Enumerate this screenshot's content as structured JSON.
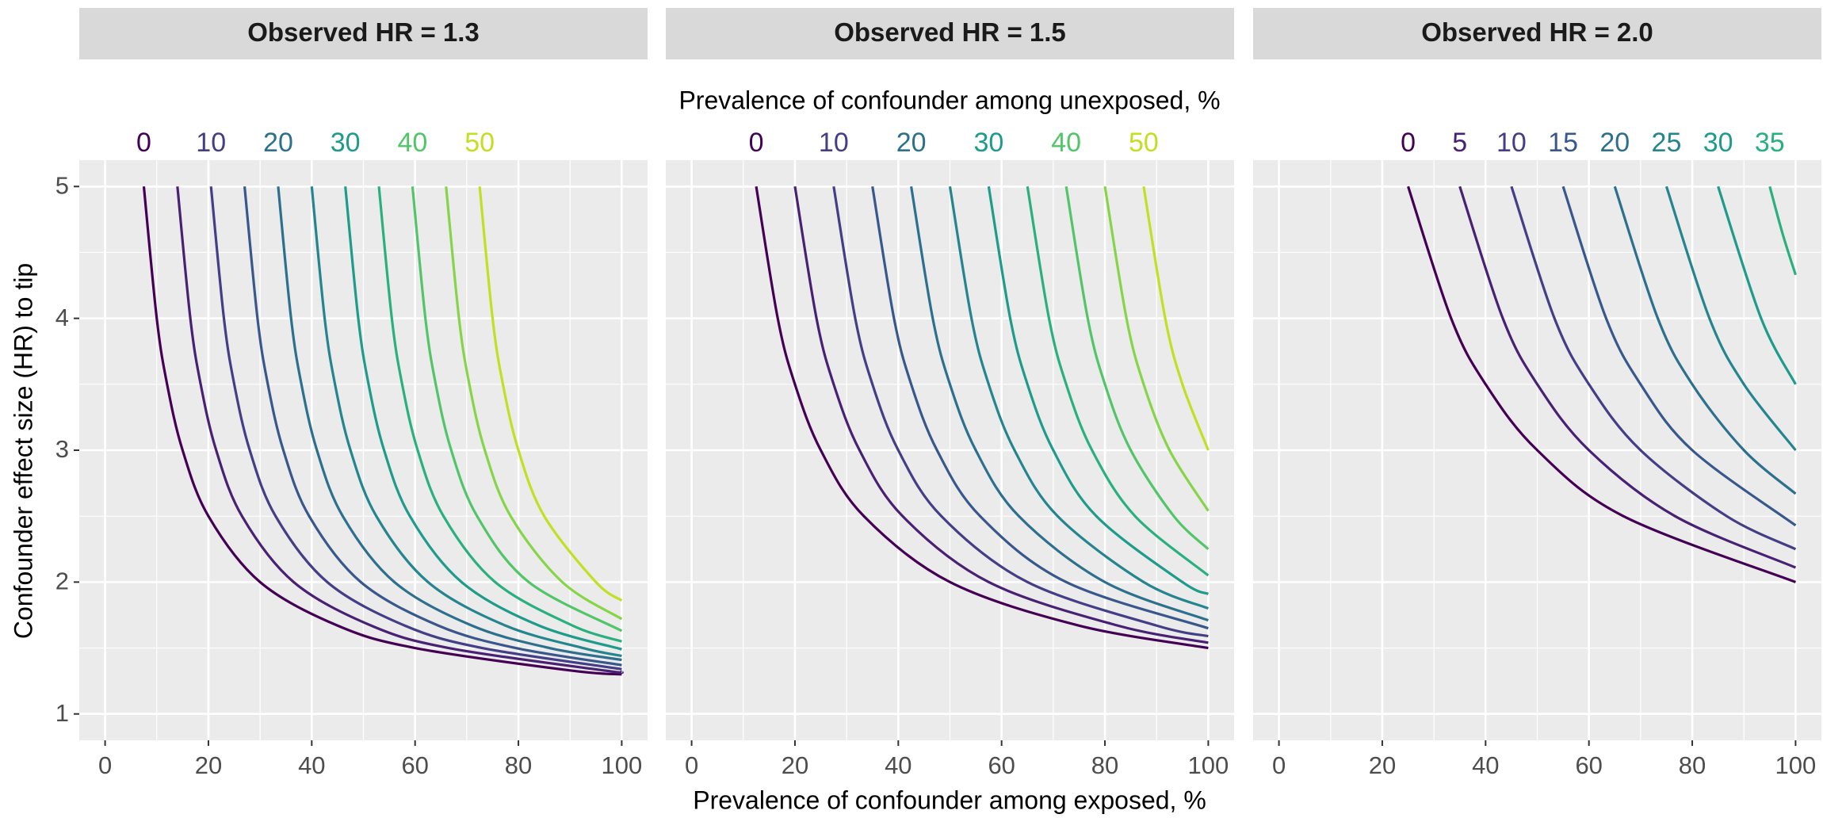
{
  "chart_data": {
    "type": "line",
    "top_label": "Prevalence of confounder among unexposed, %",
    "xlabel": "Prevalence of confounder among exposed, %",
    "ylabel": "Confounder effect size (HR) to tip",
    "xlim": [
      -5,
      105
    ],
    "ylim": [
      0.8,
      5.2
    ],
    "xticks": [
      0,
      20,
      40,
      60,
      80,
      100
    ],
    "yticks": [
      1,
      2,
      3,
      4,
      5
    ],
    "x_minor_grid": [
      10,
      30,
      50,
      70,
      90
    ],
    "y_minor_grid": [
      1.5,
      2.5,
      3.5,
      4.5
    ],
    "grid": true,
    "panels": [
      {
        "title": "Observed HR = 1.3",
        "series": [
          {
            "name": "0",
            "color": "#440154",
            "x": [
              7.5,
              10,
              12,
              15,
              20,
              30,
              45,
              60,
              90,
              100
            ],
            "values": [
              5,
              4,
              3.5,
              3,
              2.5,
              2,
              1.67,
              1.5,
              1.33,
              1.3
            ]
          },
          {
            "color": "#482173",
            "x": [
              14,
              16.5,
              18.5,
              21.5,
              26.5,
              36.5,
              51.5,
              66.5,
              96.5,
              100
            ],
            "values": [
              5,
              4,
              3.5,
              3,
              2.5,
              2,
              1.67,
              1.5,
              1.33,
              1.32
            ]
          },
          {
            "name": "10",
            "color": "#433e85",
            "x": [
              20.5,
              23,
              25,
              28,
              33,
              43,
              58,
              73,
              100
            ],
            "values": [
              5,
              4,
              3.5,
              3,
              2.5,
              2,
              1.67,
              1.5,
              1.34
            ]
          },
          {
            "color": "#38588c",
            "x": [
              27,
              29.5,
              31.5,
              34.5,
              39.5,
              49.5,
              64.5,
              79.5,
              100
            ],
            "values": [
              5,
              4,
              3.5,
              3,
              2.5,
              2,
              1.67,
              1.5,
              1.37
            ]
          },
          {
            "name": "20",
            "color": "#2d708e",
            "x": [
              33.5,
              36,
              38,
              41,
              46,
              56,
              71,
              86,
              100
            ],
            "values": [
              5,
              4,
              3.5,
              3,
              2.5,
              2,
              1.67,
              1.5,
              1.41
            ]
          },
          {
            "color": "#25858e",
            "x": [
              40,
              42.5,
              44.5,
              47.5,
              52.5,
              62.5,
              77.5,
              92.5,
              100
            ],
            "values": [
              5,
              4,
              3.5,
              3,
              2.5,
              2,
              1.67,
              1.5,
              1.44
            ]
          },
          {
            "name": "30",
            "color": "#1e9b8a",
            "x": [
              46.5,
              49,
              51,
              54,
              59,
              69,
              84,
              100
            ],
            "values": [
              5,
              4,
              3.5,
              3,
              2.5,
              2,
              1.67,
              1.49
            ]
          },
          {
            "color": "#2ab07f",
            "x": [
              53,
              55.5,
              57.5,
              60.5,
              65.5,
              75.5,
              90.5,
              100
            ],
            "values": [
              5,
              4,
              3.5,
              3,
              2.5,
              2,
              1.67,
              1.55
            ]
          },
          {
            "name": "40",
            "color": "#52c569",
            "x": [
              59.5,
              62,
              64,
              67,
              72,
              82,
              100
            ],
            "values": [
              5,
              4,
              3.5,
              3,
              2.5,
              2,
              1.63
            ]
          },
          {
            "color": "#86d549",
            "x": [
              66,
              68.5,
              70.5,
              73.5,
              78.5,
              88.5,
              100
            ],
            "values": [
              5,
              4,
              3.5,
              3,
              2.5,
              2,
              1.72
            ]
          },
          {
            "name": "50",
            "color": "#c2df23",
            "x": [
              72.5,
              75,
              77,
              80,
              85,
              95,
              100
            ],
            "values": [
              5,
              4,
              3.5,
              3,
              2.5,
              2,
              1.86
            ]
          }
        ]
      },
      {
        "title": "Observed HR = 1.5",
        "series": [
          {
            "name": "0",
            "color": "#440154",
            "x": [
              12.5,
              16.67,
              20,
              25,
              33.33,
              50,
              75,
              100
            ],
            "values": [
              5,
              4,
              3.5,
              3,
              2.5,
              2,
              1.67,
              1.5
            ]
          },
          {
            "color": "#482173",
            "x": [
              20,
              24.17,
              27.5,
              32.5,
              40.83,
              57.5,
              82.5,
              100
            ],
            "values": [
              5,
              4,
              3.5,
              3,
              2.5,
              2,
              1.67,
              1.54
            ]
          },
          {
            "name": "10",
            "color": "#433e85",
            "x": [
              27.5,
              31.67,
              35,
              40,
              48.33,
              65,
              90,
              100
            ],
            "values": [
              5,
              4,
              3.5,
              3,
              2.5,
              2,
              1.67,
              1.59
            ]
          },
          {
            "color": "#38588c",
            "x": [
              35,
              39.17,
              42.5,
              47.5,
              55.83,
              72.5,
              100
            ],
            "values": [
              5,
              4,
              3.5,
              3,
              2.5,
              2,
              1.65
            ]
          },
          {
            "name": "20",
            "color": "#2d708e",
            "x": [
              42.5,
              46.67,
              50,
              55,
              63.33,
              80,
              100
            ],
            "values": [
              5,
              4,
              3.5,
              3,
              2.5,
              2,
              1.71
            ]
          },
          {
            "color": "#25858e",
            "x": [
              50,
              54.17,
              57.5,
              62.5,
              70.83,
              87.5,
              100
            ],
            "values": [
              5,
              4,
              3.5,
              3,
              2.5,
              2,
              1.8
            ]
          },
          {
            "name": "30",
            "color": "#1e9b8a",
            "x": [
              57.5,
              61.67,
              65,
              70,
              78.33,
              95,
              100
            ],
            "values": [
              5,
              4,
              3.5,
              3,
              2.5,
              2,
              1.91
            ]
          },
          {
            "color": "#2ab07f",
            "x": [
              65,
              69.17,
              72.5,
              77.5,
              85.83,
              100
            ],
            "values": [
              5,
              4,
              3.5,
              3,
              2.5,
              2.05
            ]
          },
          {
            "name": "40",
            "color": "#52c569",
            "x": [
              72.5,
              76.67,
              80,
              85,
              93.33,
              100
            ],
            "values": [
              5,
              4,
              3.5,
              3,
              2.5,
              2.25
            ]
          },
          {
            "color": "#86d549",
            "x": [
              80,
              84.17,
              87.5,
              92.5,
              100
            ],
            "values": [
              5,
              4,
              3.5,
              3,
              2.54
            ]
          },
          {
            "name": "50",
            "color": "#c2df23",
            "x": [
              87.5,
              91.67,
              95,
              100
            ],
            "values": [
              5,
              4,
              3.5,
              3
            ]
          }
        ]
      },
      {
        "title": "Observed HR = 2.0",
        "series": [
          {
            "name": "0",
            "color": "#440154",
            "x": [
              25,
              33.33,
              40,
              50,
              66.67,
              100
            ],
            "values": [
              5,
              4,
              3.5,
              3,
              2.5,
              2
            ]
          },
          {
            "name": "5",
            "color": "#482173",
            "x": [
              35,
              43.33,
              50,
              60,
              76.67,
              100
            ],
            "values": [
              5,
              4,
              3.5,
              3,
              2.5,
              2.11
            ]
          },
          {
            "name": "10",
            "color": "#433e85",
            "x": [
              45,
              53.33,
              60,
              70,
              86.67,
              100
            ],
            "values": [
              5,
              4,
              3.5,
              3,
              2.5,
              2.25
            ]
          },
          {
            "name": "15",
            "color": "#38588c",
            "x": [
              55,
              63.33,
              70,
              80,
              100
            ],
            "values": [
              5,
              4,
              3.5,
              3,
              2.43
            ]
          },
          {
            "name": "20",
            "color": "#2d708e",
            "x": [
              65,
              73.33,
              80,
              90,
              100
            ],
            "values": [
              5,
              4,
              3.5,
              3,
              2.67
            ]
          },
          {
            "name": "25",
            "color": "#25858e",
            "x": [
              75,
              83.33,
              90,
              100
            ],
            "values": [
              5,
              4,
              3.5,
              3
            ]
          },
          {
            "name": "30",
            "color": "#1e9b8a",
            "x": [
              85,
              93.33,
              100
            ],
            "values": [
              5,
              4,
              3.5
            ]
          },
          {
            "name": "35",
            "color": "#2ab07f",
            "x": [
              95,
              97.5,
              100
            ],
            "values": [
              5,
              4.64,
              4.33
            ]
          }
        ]
      }
    ]
  }
}
